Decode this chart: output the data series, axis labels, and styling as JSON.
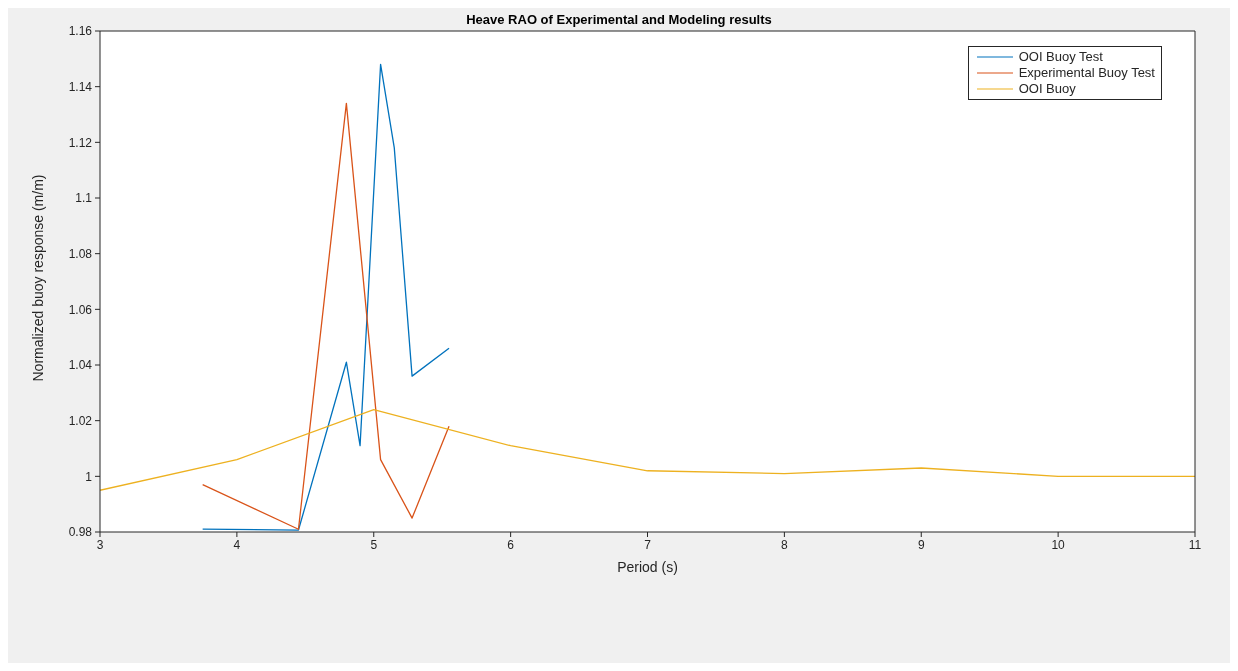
{
  "chart_data": {
    "type": "line",
    "title": "Heave RAO of Experimental and Modeling results",
    "xlabel": "Period (s)",
    "ylabel": "Normalized buoy response (m/m)",
    "xlim": [
      3,
      11
    ],
    "xticks": [
      3,
      4,
      5,
      6,
      7,
      8,
      9,
      10,
      11
    ],
    "ylim": [
      0.98,
      1.16
    ],
    "yticks": [
      0.98,
      1,
      1.02,
      1.04,
      1.06,
      1.08,
      1.1,
      1.12,
      1.14,
      1.16
    ],
    "grid": false,
    "legend": "top right",
    "marker": "none",
    "line_style": "solid",
    "series": [
      {
        "name": "OOI Buoy Test",
        "color": "#0072bd",
        "x": [
          3.75,
          4.45,
          4.8,
          4.9,
          5.05,
          5.15,
          5.28,
          5.55
        ],
        "values": [
          0.981,
          0.9807,
          1.041,
          1.011,
          1.148,
          1.118,
          1.036,
          1.046
        ]
      },
      {
        "name": "Experimental Buoy Test",
        "color": "#d95319",
        "x": [
          3.75,
          4.45,
          4.8,
          5.05,
          5.28,
          5.55
        ],
        "values": [
          0.997,
          0.981,
          1.134,
          1.006,
          0.985,
          1.018
        ]
      },
      {
        "name": "OOI Buoy",
        "color": "#edb120",
        "x": [
          3,
          4,
          5,
          6,
          7,
          8,
          9,
          10,
          11
        ],
        "values": [
          0.995,
          1.006,
          1.024,
          1.011,
          1.002,
          1.001,
          1.003,
          1.0,
          1.0
        ]
      }
    ]
  }
}
